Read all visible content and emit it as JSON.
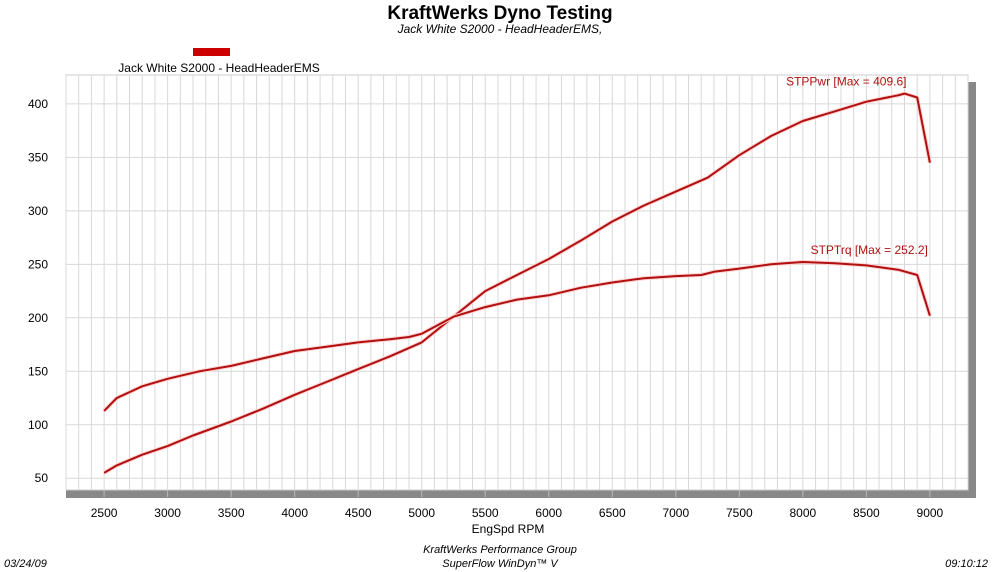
{
  "chart_data": {
    "type": "line",
    "title": "KraftWerks Dyno Testing",
    "subtitle": "Jack White S2000 - HeadHeaderEMS,",
    "legend": {
      "label": "Jack White S2000 - HeadHeaderEMS",
      "color": "#cc0000",
      "placement": "top-left"
    },
    "xlabel": "EngSpd  RPM",
    "ylabel": "",
    "xlim": [
      2200,
      9300
    ],
    "ylim": [
      39,
      427
    ],
    "xticks": [
      2500,
      3000,
      3500,
      4000,
      4500,
      5000,
      5500,
      6000,
      6500,
      7000,
      7500,
      8000,
      8500,
      9000
    ],
    "yticks": [
      50,
      100,
      150,
      200,
      250,
      300,
      350,
      400
    ],
    "grid": true,
    "series": [
      {
        "name": "STPPwr",
        "annotation": "STPPwr [Max = 409.6]",
        "color": "#b01010",
        "x": [
          2500,
          2600,
          2800,
          3000,
          3200,
          3500,
          3750,
          4000,
          4250,
          4500,
          4750,
          5000,
          5250,
          5500,
          5750,
          6000,
          6250,
          6500,
          6750,
          7000,
          7250,
          7500,
          7750,
          8000,
          8250,
          8500,
          8750,
          8800,
          8900,
          9000
        ],
        "y": [
          55,
          62,
          72,
          80,
          90,
          103,
          115,
          128,
          140,
          152,
          164,
          177,
          201,
          225,
          240,
          255,
          272,
          290,
          305,
          318,
          331,
          352,
          370,
          384,
          393,
          402,
          408,
          409.6,
          406,
          345
        ]
      },
      {
        "name": "STPTrq",
        "annotation": "STPTrq [Max = 252.2]",
        "color": "#b01010",
        "x": [
          2500,
          2600,
          2800,
          3000,
          3250,
          3500,
          3750,
          4000,
          4250,
          4500,
          4750,
          4900,
          5000,
          5250,
          5500,
          5750,
          6000,
          6250,
          6500,
          6750,
          7000,
          7200,
          7300,
          7500,
          7750,
          8000,
          8250,
          8500,
          8750,
          8900,
          9000
        ],
        "y": [
          113,
          125,
          136,
          143,
          150,
          155,
          162,
          169,
          173,
          177,
          180,
          182,
          185,
          201,
          210,
          217,
          221,
          228,
          233,
          237,
          239,
          240,
          243,
          246,
          250,
          252.2,
          251,
          249,
          245,
          240,
          202
        ]
      }
    ]
  },
  "footer": {
    "date": "03/24/09",
    "time": "09:10:12",
    "company": "KraftWerks Performance Group",
    "software": "SuperFlow WinDyn™ V"
  }
}
